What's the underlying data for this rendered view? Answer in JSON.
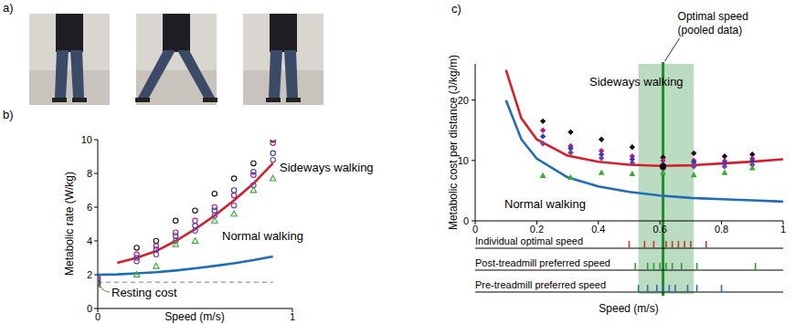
{
  "photo_panel": {
    "label": "a)",
    "count": 3
  },
  "chart_data": [
    {
      "type": "scatter",
      "title": "b)",
      "x_label": "Speed (m/s)",
      "y_label": "Metabolic rate (W/kg)",
      "xlim": [
        0,
        1
      ],
      "ylim": [
        0,
        10
      ],
      "xticks": [
        0,
        1
      ],
      "yticks": [
        0,
        2,
        4,
        6,
        8,
        10
      ],
      "series": [
        {
          "name": "Sideways walking",
          "type": "line",
          "color": "#d41f2c",
          "x": [
            0.1,
            0.2,
            0.3,
            0.4,
            0.5,
            0.6,
            0.7,
            0.8,
            0.9
          ],
          "values": [
            2.7,
            3.0,
            3.4,
            4.0,
            4.7,
            5.5,
            6.4,
            7.4,
            8.6
          ]
        },
        {
          "name": "Normal walking",
          "type": "line",
          "color": "#1f6db5",
          "x": [
            0,
            0.1,
            0.2,
            0.3,
            0.4,
            0.5,
            0.6,
            0.7,
            0.8,
            0.9
          ],
          "values": [
            2.0,
            2.02,
            2.08,
            2.15,
            2.25,
            2.38,
            2.52,
            2.68,
            2.86,
            3.08
          ]
        },
        {
          "name": "Resting cost",
          "type": "line",
          "line_style": "dashed",
          "color": "#aaaaaa",
          "x": [
            0,
            0.9
          ],
          "values": [
            1.55,
            1.55
          ]
        },
        {
          "type": "scatter",
          "marker": "circle-open",
          "color": "#111111",
          "x": [
            0,
            0.2,
            0.3,
            0.4,
            0.5,
            0.6,
            0.7,
            0.8,
            0.9
          ],
          "values": [
            1.5,
            3.6,
            4.0,
            5.2,
            5.8,
            6.8,
            7.7,
            8.6,
            10.0
          ]
        },
        {
          "type": "scatter",
          "marker": "circle-open",
          "color": "#c2187a",
          "x": [
            0,
            0.2,
            0.3,
            0.4,
            0.5,
            0.6,
            0.7,
            0.8,
            0.9
          ],
          "values": [
            1.7,
            3.2,
            3.7,
            4.5,
            5.2,
            6.0,
            6.7,
            7.9,
            9.8
          ]
        },
        {
          "type": "scatter",
          "marker": "circle-open",
          "color": "#2a3fbf",
          "x": [
            0,
            0.2,
            0.3,
            0.4,
            0.5,
            0.6,
            0.7,
            0.8,
            0.9
          ],
          "values": [
            1.8,
            3.0,
            3.5,
            4.3,
            4.9,
            5.8,
            7.0,
            8.1,
            9.2
          ]
        },
        {
          "type": "scatter",
          "marker": "circle-open",
          "color": "#7a3ea0",
          "x": [
            0,
            0.2,
            0.3,
            0.4,
            0.5,
            0.6,
            0.7,
            0.8,
            0.9
          ],
          "values": [
            1.6,
            2.8,
            3.2,
            4.0,
            4.6,
            5.5,
            6.1,
            7.3,
            8.8
          ]
        },
        {
          "type": "scatter",
          "marker": "triangle-open",
          "color": "#3aa83a",
          "x": [
            0,
            0.2,
            0.3,
            0.4,
            0.5,
            0.6,
            0.7,
            0.8,
            0.9
          ],
          "values": [
            1.4,
            2.0,
            2.5,
            3.8,
            4.0,
            5.2,
            5.6,
            7.0,
            7.7
          ]
        }
      ]
    },
    {
      "type": "scatter",
      "title": "c)",
      "x_label": "Speed (m/s)",
      "y_label": "Metabolic cost per distance (J/kg/m)",
      "xlim": [
        0,
        1
      ],
      "ylim": [
        0,
        26
      ],
      "xticks": [
        0,
        0.2,
        0.4,
        0.6,
        0.8,
        1
      ],
      "yticks": [
        0,
        10,
        20
      ],
      "optimal_speed": {
        "label_lines": [
          "Optimal speed",
          "(pooled data)"
        ],
        "value": 0.61,
        "range": [
          0.53,
          0.71
        ],
        "color": "#1f8a2e"
      },
      "series": [
        {
          "name": "Sideways walking",
          "type": "line",
          "color": "#d41f2c",
          "x": [
            0.1,
            0.15,
            0.2,
            0.3,
            0.4,
            0.5,
            0.6,
            0.7,
            0.8,
            0.9,
            1
          ],
          "values": [
            25,
            17,
            13.5,
            10.8,
            9.8,
            9.3,
            9.1,
            9.2,
            9.5,
            9.8,
            10.2
          ]
        },
        {
          "name": "Normal walking",
          "type": "line",
          "color": "#1f6db5",
          "x": [
            0.1,
            0.15,
            0.2,
            0.3,
            0.4,
            0.5,
            0.6,
            0.7,
            0.8,
            0.9,
            1
          ],
          "values": [
            20,
            13.5,
            10.3,
            7.2,
            5.7,
            4.8,
            4.2,
            3.8,
            3.6,
            3.4,
            3.2
          ]
        },
        {
          "type": "scatter",
          "marker": "diamond",
          "color": "#111111",
          "x": [
            0.22,
            0.31,
            0.41,
            0.51,
            0.61,
            0.71,
            0.81,
            0.9
          ],
          "values": [
            16.5,
            14.7,
            13.5,
            12.2,
            10.5,
            11.2,
            10.7,
            11.0
          ]
        },
        {
          "type": "scatter",
          "marker": "diamond",
          "color": "#c2187a",
          "x": [
            0.22,
            0.31,
            0.41,
            0.51,
            0.61,
            0.71,
            0.81,
            0.9
          ],
          "values": [
            15.0,
            12.4,
            11.6,
            10.7,
            10.0,
            10.0,
            9.9,
            10.3
          ]
        },
        {
          "type": "scatter",
          "marker": "diamond",
          "color": "#2a3fbf",
          "x": [
            0.22,
            0.31,
            0.41,
            0.51,
            0.61,
            0.71,
            0.81,
            0.9
          ],
          "values": [
            14.0,
            12.0,
            11.0,
            10.2,
            9.3,
            9.7,
            9.5,
            9.9
          ]
        },
        {
          "type": "scatter",
          "marker": "diamond",
          "color": "#7a3ea0",
          "x": [
            0.22,
            0.31,
            0.41,
            0.51,
            0.61,
            0.71,
            0.81,
            0.9
          ],
          "values": [
            12.8,
            11.3,
            10.4,
            9.6,
            8.6,
            9.0,
            9.0,
            9.3
          ]
        },
        {
          "type": "scatter",
          "marker": "triangle",
          "color": "#3aa83a",
          "x": [
            0.22,
            0.31,
            0.41,
            0.51,
            0.61,
            0.71,
            0.81,
            0.9
          ],
          "values": [
            7.5,
            7.2,
            8.0,
            7.8,
            8.0,
            7.6,
            8.0,
            8.8
          ]
        },
        {
          "type": "scatter",
          "marker": "circle",
          "color": "#111111",
          "x": [
            0.61
          ],
          "values": [
            9.0
          ]
        }
      ],
      "speed_rows": [
        {
          "name": "Individual optimal speed",
          "color": "#c0392b",
          "values": [
            0.5,
            0.55,
            0.58,
            0.62,
            0.64,
            0.66,
            0.68,
            0.7,
            0.75
          ]
        },
        {
          "name": "Post-treadmill preferred speed",
          "color": "#2e9a3e",
          "values": [
            0.52,
            0.56,
            0.58,
            0.6,
            0.62,
            0.64,
            0.67,
            0.72,
            0.91
          ]
        },
        {
          "name": "Pre-treadmill preferred speed",
          "color": "#2a6fb5",
          "values": [
            0.53,
            0.56,
            0.59,
            0.61,
            0.63,
            0.65,
            0.69,
            0.72,
            0.8
          ]
        }
      ]
    }
  ]
}
